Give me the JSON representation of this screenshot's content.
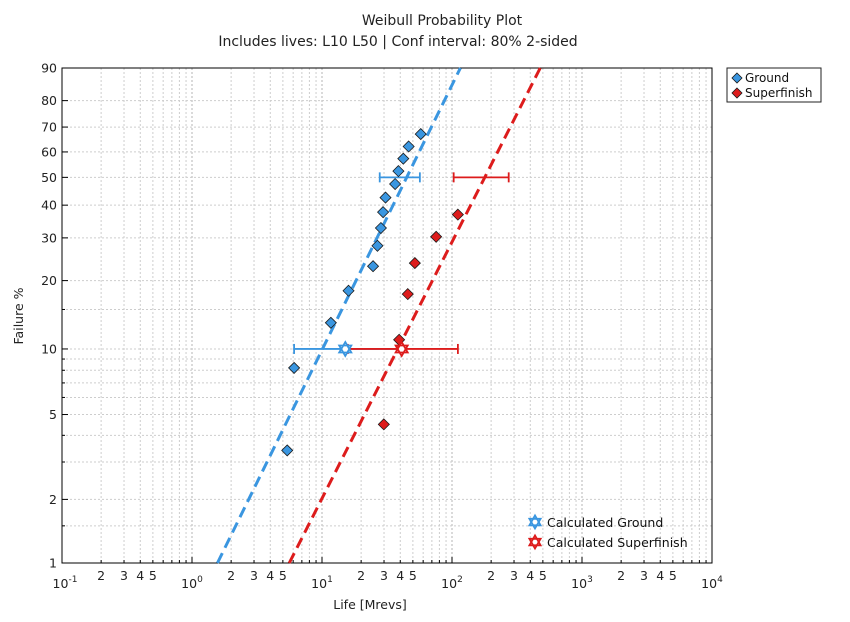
{
  "chart_data": {
    "type": "scatter",
    "title": "Weibull Probability Plot",
    "subtitle": "Includes lives: L10 L50 | Conf interval: 80% 2-sided",
    "xlabel": "Life [Mrevs]",
    "ylabel": "Failure %",
    "xscale": "log",
    "yscale": "weibull",
    "xlim": [
      0.1,
      10000
    ],
    "ylim": [
      1,
      90
    ],
    "grid": true,
    "y_ticks": [
      "1",
      "2",
      "5",
      "10",
      "20",
      "30",
      "40",
      "50",
      "60",
      "70",
      "80",
      "90"
    ],
    "x_decade_labels": [
      {
        "base": "10",
        "exp": "-1"
      },
      {
        "base": "10",
        "exp": "0"
      },
      {
        "base": "10",
        "exp": "1"
      },
      {
        "base": "10",
        "exp": "2"
      },
      {
        "base": "10",
        "exp": "3"
      },
      {
        "base": "10",
        "exp": "4"
      }
    ],
    "x_minor_labels": [
      "2",
      "3",
      "4",
      "5"
    ],
    "series": [
      {
        "name": "Ground",
        "color": "#3a96e0",
        "points": [
          {
            "x": 5.4,
            "y": 3.4
          },
          {
            "x": 6.1,
            "y": 8.2
          },
          {
            "x": 11.7,
            "y": 13.1
          },
          {
            "x": 16.0,
            "y": 18.1
          },
          {
            "x": 24.7,
            "y": 23.0
          },
          {
            "x": 26.7,
            "y": 27.9
          },
          {
            "x": 28.4,
            "y": 32.8
          },
          {
            "x": 29.5,
            "y": 37.7
          },
          {
            "x": 30.8,
            "y": 42.6
          },
          {
            "x": 36.5,
            "y": 47.5
          },
          {
            "x": 38.7,
            "y": 52.4
          },
          {
            "x": 42.2,
            "y": 57.3
          },
          {
            "x": 46.4,
            "y": 62.2
          },
          {
            "x": 57.5,
            "y": 67.2
          }
        ],
        "fit_line": {
          "x": [
            1.57,
            116
          ],
          "y": [
            1,
            90
          ]
        },
        "L10": {
          "life": 15.1,
          "lower": 6.1,
          "upper": 40.2
        },
        "L50": {
          "life": 38.5,
          "lower": 27.8,
          "upper": 56.6
        }
      },
      {
        "name": "Superfinish",
        "color": "#dd1c1c",
        "points": [
          {
            "x": 29.9,
            "y": 4.5
          },
          {
            "x": 39.2,
            "y": 11.0
          },
          {
            "x": 45.7,
            "y": 17.5
          },
          {
            "x": 51.8,
            "y": 23.7
          },
          {
            "x": 75.5,
            "y": 30.3
          },
          {
            "x": 111,
            "y": 36.9
          }
        ],
        "fit_line": {
          "x": [
            5.6,
            477
          ],
          "y": [
            1,
            90
          ]
        },
        "L10": {
          "life": 41.0,
          "lower": 15.8,
          "upper": 111
        },
        "L50": {
          "life": 168,
          "lower": 103,
          "upper": 273
        }
      }
    ],
    "legend": {
      "position": "right",
      "entries": [
        {
          "label": "Ground",
          "color": "#3a96e0"
        },
        {
          "label": "Superfinish",
          "color": "#dd1c1c"
        }
      ]
    },
    "legend_calculated": {
      "position": "bottom-right",
      "entries": [
        {
          "label": "Calculated Ground",
          "color": "#3a96e0"
        },
        {
          "label": "Calculated Superfinish",
          "color": "#dd1c1c"
        }
      ]
    }
  }
}
